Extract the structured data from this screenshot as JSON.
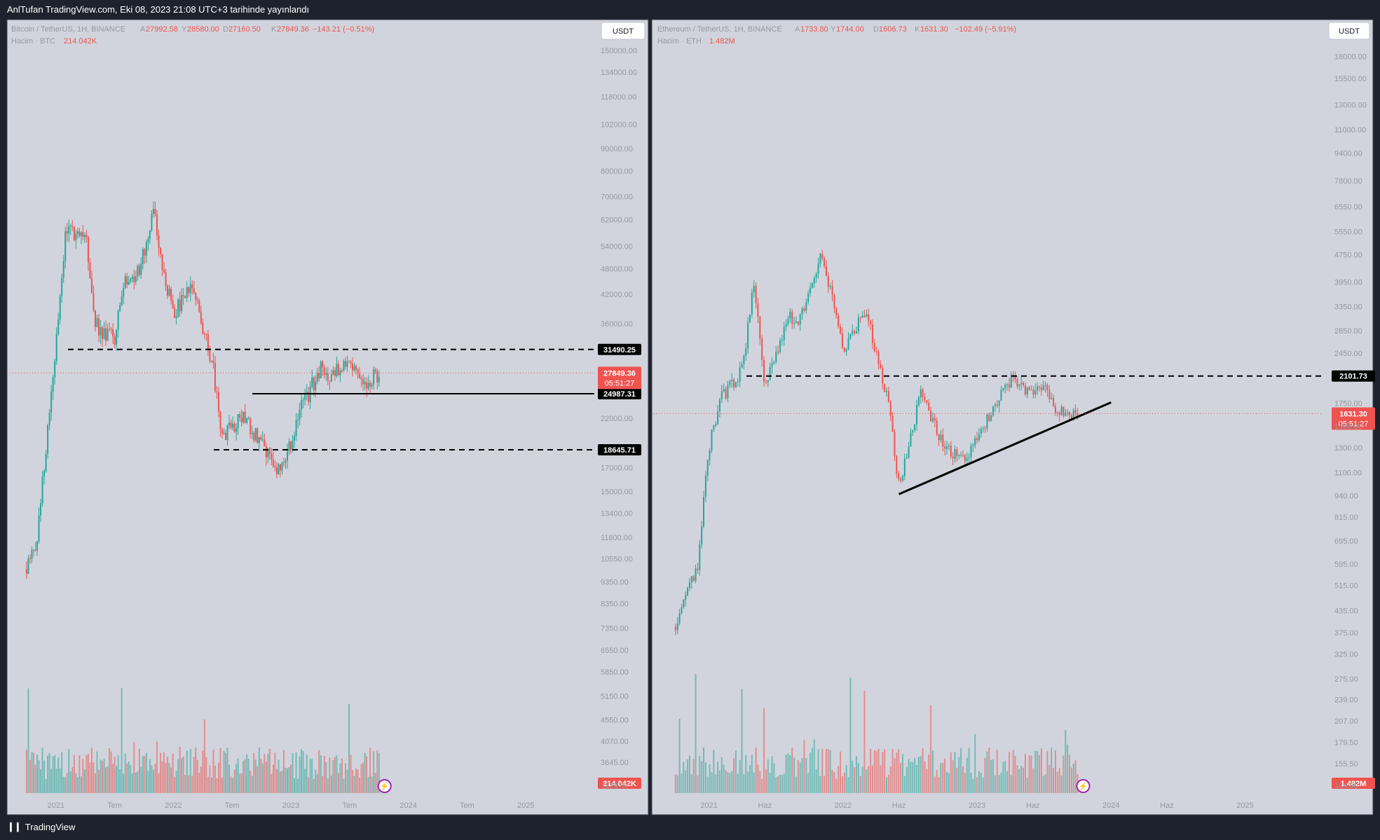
{
  "header": {
    "caption": "AnlTufan TradingView.com, Eki 08, 2023 21:08 UTC+3 tarihinde yayınlandı"
  },
  "footer": {
    "brand": "TradingView",
    "logo_icon": "tradingview-logo-icon"
  },
  "colors": {
    "up": "#26a69a",
    "down": "#ef5350",
    "pane_bg": "#d1d4dc",
    "frame": "#1e222d"
  },
  "chart_data": [
    {
      "type": "candlestick",
      "symbol_line": {
        "name": "Bitcoin / TetherUS, 1H, BINANCE",
        "open_label": "A",
        "open": "27992.58",
        "high_label": "Y",
        "high": "28580.00",
        "low_label": "D",
        "low": "27160.50",
        "close_label": "K",
        "close": "27849.36",
        "change": "−143.21 (−0.51%)"
      },
      "volume_line": {
        "label": "Hacim · BTC",
        "value": "214.042K"
      },
      "currency": "USDT",
      "y_scale": "log",
      "ylim": [
        3150,
        158000
      ],
      "y_ticks": [
        "150000.00",
        "134000.00",
        "118000.00",
        "102000.00",
        "90000.00",
        "80000.00",
        "70000.00",
        "62000.00",
        "54000.00",
        "48000.00",
        "42000.00",
        "36000.00",
        "31490.25",
        "27849.36",
        "24987.31",
        "22000.00",
        "18645.71",
        "17000.00",
        "15000.00",
        "13400.00",
        "11800.00",
        "10550.00",
        "9350.00",
        "8350.00",
        "7350.00",
        "6550.00",
        "5850.00",
        "5150.00",
        "4550.00",
        "4070.00",
        "3645.00",
        "3225.00"
      ],
      "x_ticks": [
        "2021",
        "Tem",
        "2022",
        "Tem",
        "2023",
        "Tem",
        "2024",
        "Tem",
        "2025"
      ],
      "last_price": {
        "value": "27849.36",
        "countdown": "05:51:27"
      },
      "volume_last": "214.042K",
      "levels": [
        {
          "value": 31490.25,
          "label": "31490.25",
          "style": "dashed"
        },
        {
          "value": 24987.31,
          "label": "24987.31",
          "style": "solid"
        },
        {
          "value": 18645.71,
          "label": "18645.71",
          "style": "dashed"
        }
      ],
      "price_path": [
        [
          10000,
          "2020-10"
        ],
        [
          11500,
          "2020-11"
        ],
        [
          19000,
          "2020-12"
        ],
        [
          33000,
          "2021-01"
        ],
        [
          58000,
          "2021-02"
        ],
        [
          58500,
          "2021-04"
        ],
        [
          36000,
          "2021-05"
        ],
        [
          33000,
          "2021-07"
        ],
        [
          47000,
          "2021-08"
        ],
        [
          44000,
          "2021-09"
        ],
        [
          64000,
          "2021-11"
        ],
        [
          47000,
          "2021-12"
        ],
        [
          38000,
          "2022-01"
        ],
        [
          44000,
          "2022-03"
        ],
        [
          29000,
          "2022-05"
        ],
        [
          20000,
          "2022-06"
        ],
        [
          22000,
          "2022-08"
        ],
        [
          19500,
          "2022-10"
        ],
        [
          16500,
          "2022-12"
        ],
        [
          23000,
          "2023-02"
        ],
        [
          28500,
          "2023-04"
        ],
        [
          27000,
          "2023-05"
        ],
        [
          30300,
          "2023-07"
        ],
        [
          26000,
          "2023-08"
        ],
        [
          27849,
          "2023-10"
        ]
      ]
    },
    {
      "type": "candlestick",
      "symbol_line": {
        "name": "Ethereum / TetherUS, 1H, BINANCE",
        "open_label": "A",
        "open": "1733.80",
        "high_label": "Y",
        "high": "1744.00",
        "low_label": "D",
        "low": "1606.73",
        "close_label": "K",
        "close": "1631.30",
        "change": "−102.49 (−5.91%)"
      },
      "volume_line": {
        "label": "Hacim · ETH",
        "value": "1.482M"
      },
      "currency": "USDT",
      "y_scale": "log",
      "ylim": [
        130,
        20000
      ],
      "y_ticks": [
        "18000.00",
        "15500.00",
        "13000.00",
        "11000.00",
        "9400.00",
        "7800.00",
        "6550.00",
        "5550.00",
        "4750.00",
        "3950.00",
        "3350.00",
        "2850.00",
        "2450.00",
        "2101.73",
        "1750.00",
        "1631.30",
        "1500.00",
        "1300.00",
        "1100.00",
        "940.00",
        "815.00",
        "695.00",
        "595.00",
        "515.00",
        "435.00",
        "375.00",
        "325.00",
        "275.00",
        "239.00",
        "207.00",
        "179.50",
        "155.50",
        "134.50"
      ],
      "x_ticks": [
        "2021",
        "Haz",
        "2022",
        "Haz",
        "2023",
        "Haz",
        "2024",
        "Haz",
        "2025"
      ],
      "last_price": {
        "value": "1631.30",
        "countdown": "05:51:27"
      },
      "volume_last": "1.482M",
      "levels": [
        {
          "value": 2101.73,
          "label": "2101.73",
          "style": "dashed"
        }
      ],
      "trendline": {
        "from": [
          "2022-06",
          950
        ],
        "to": [
          "2024-01",
          1760
        ]
      },
      "price_path": [
        [
          390,
          "2020-10"
        ],
        [
          480,
          "2020-11"
        ],
        [
          600,
          "2020-12"
        ],
        [
          1300,
          "2021-01"
        ],
        [
          1800,
          "2021-02"
        ],
        [
          2200,
          "2021-04"
        ],
        [
          4000,
          "2021-05"
        ],
        [
          2000,
          "2021-06"
        ],
        [
          2400,
          "2021-07"
        ],
        [
          3200,
          "2021-08"
        ],
        [
          3000,
          "2021-09"
        ],
        [
          4700,
          "2021-11"
        ],
        [
          3700,
          "2021-12"
        ],
        [
          2500,
          "2022-01"
        ],
        [
          3300,
          "2022-03"
        ],
        [
          1800,
          "2022-05"
        ],
        [
          1000,
          "2022-06"
        ],
        [
          1900,
          "2022-08"
        ],
        [
          1300,
          "2022-10"
        ],
        [
          1180,
          "2022-12"
        ],
        [
          1600,
          "2023-02"
        ],
        [
          2050,
          "2023-04"
        ],
        [
          1850,
          "2023-06"
        ],
        [
          1950,
          "2023-07"
        ],
        [
          1650,
          "2023-08"
        ],
        [
          1631,
          "2023-10"
        ]
      ]
    }
  ]
}
